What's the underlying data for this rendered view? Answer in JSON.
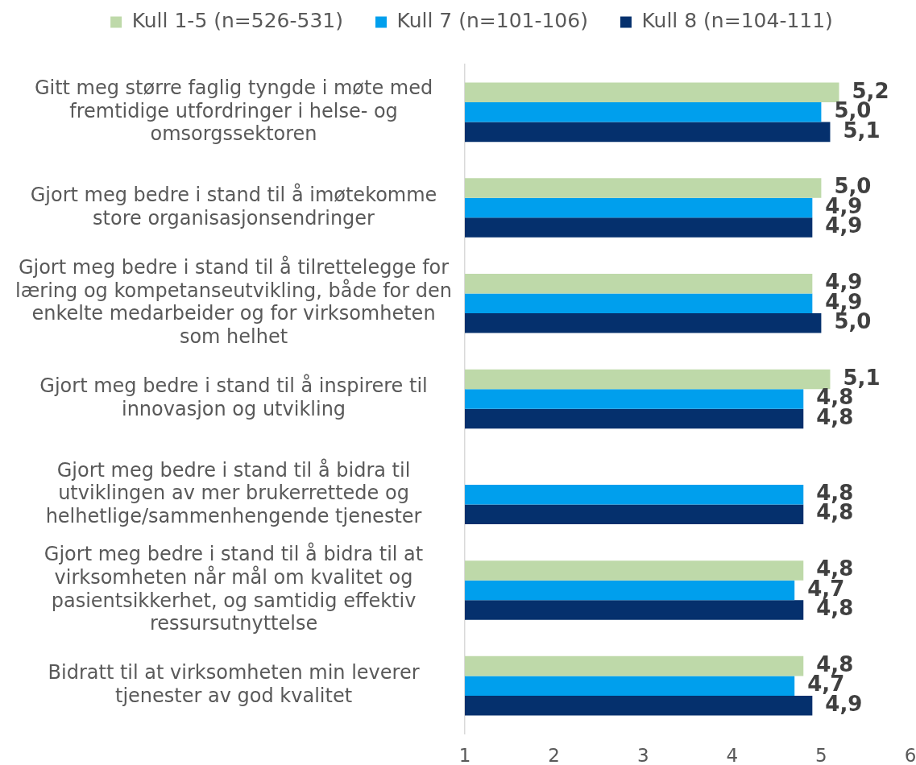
{
  "chart_data": {
    "type": "bar",
    "orientation": "horizontal",
    "categories": [
      "Gitt meg større faglig tyngde i møte med fremtidige utfordringer i helse- og omsorgssektoren",
      "Gjort meg bedre i stand til å imøtekomme store organisasjonsendringer",
      "Gjort meg bedre i stand til å tilrettelegge for læring og kompetanseutvikling, både for den enkelte medarbeider og for virksomheten som helhet",
      "Gjort meg bedre i stand til å inspirere til innovasjon og utvikling",
      "Gjort meg bedre i stand til å bidra til utviklingen av mer brukerrettede og helhetlige/sammenhengende tjenester",
      "Gjort meg bedre i stand til å bidra til at virksomheten når mål om kvalitet og pasientsikkerhet, og samtidig effektiv ressursutnyttelse",
      "Bidratt til at virksomheten min leverer tjenester av god kvalitet"
    ],
    "series": [
      {
        "name": "Kull 1-5 (n=526-531)",
        "color": "#bed9a9",
        "values": [
          5.2,
          5.0,
          4.9,
          5.1,
          null,
          4.8,
          4.8
        ],
        "value_labels": [
          "5,2",
          "5,0",
          "4,9",
          "5,1",
          null,
          "4,8",
          "4,8"
        ]
      },
      {
        "name": "Kull 7 (n=101-106)",
        "color": "#009fed",
        "values": [
          5.0,
          4.9,
          4.9,
          4.8,
          4.8,
          4.7,
          4.7
        ],
        "value_labels": [
          "5,0",
          "4,9",
          "4,9",
          "4,8",
          "4,8",
          "4,7",
          "4,7"
        ]
      },
      {
        "name": "Kull 8 (n=104-111)",
        "color": "#05306d",
        "values": [
          5.1,
          4.9,
          5.0,
          4.8,
          4.8,
          4.8,
          4.9
        ],
        "value_labels": [
          "5,1",
          "4,9",
          "5,0",
          "4,8",
          "4,8",
          "4,8",
          "4,9"
        ]
      }
    ],
    "xlim": [
      1,
      6
    ],
    "xticks": [
      1,
      2,
      3,
      4,
      5,
      6
    ],
    "legend": "top",
    "grid": false
  }
}
